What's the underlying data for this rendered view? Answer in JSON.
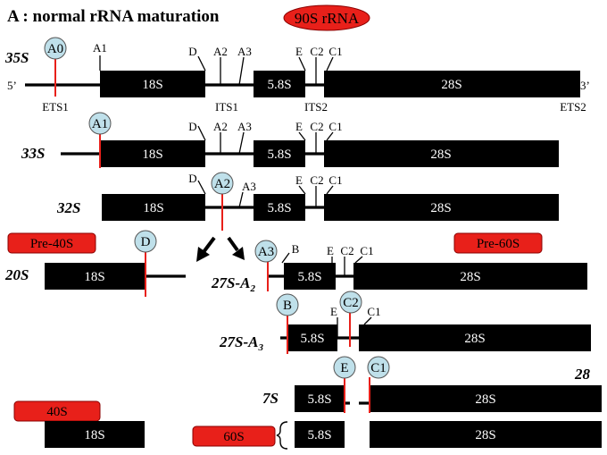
{
  "title": "A : normal rRNA maturation",
  "badge_90s": "90S rRNA",
  "labels": {
    "five_prime": "5’",
    "three_prime": "3’",
    "ets1": "ETS1",
    "its1": "ITS1",
    "its2": "ITS2",
    "ets2": "ETS2"
  },
  "segments": {
    "s18": "18S",
    "s58": "5.8S",
    "s28": "28S"
  },
  "sites": {
    "a0": "A0",
    "a1": "A1",
    "d": "D",
    "a2": "A2",
    "a3": "A3",
    "b": "B",
    "e": "E",
    "c2": "C2",
    "c1": "C1"
  },
  "species": {
    "s35": "35S",
    "s33": "33S",
    "s32": "32S",
    "s20": "20S",
    "s27a2_main": "27S-A",
    "s27a2_sub": "2",
    "s27a3_main": "27S-A",
    "s27a3_sub": "3",
    "s7": "7S",
    "s28_partial": "28"
  },
  "tags": {
    "pre40": "Pre-40S",
    "pre60": "Pre-60S",
    "s40": "40S",
    "s60": "60S"
  },
  "colors": {
    "accent_red": "#e8201a",
    "bubble": "#bfe0ea",
    "bar": "#000000"
  }
}
